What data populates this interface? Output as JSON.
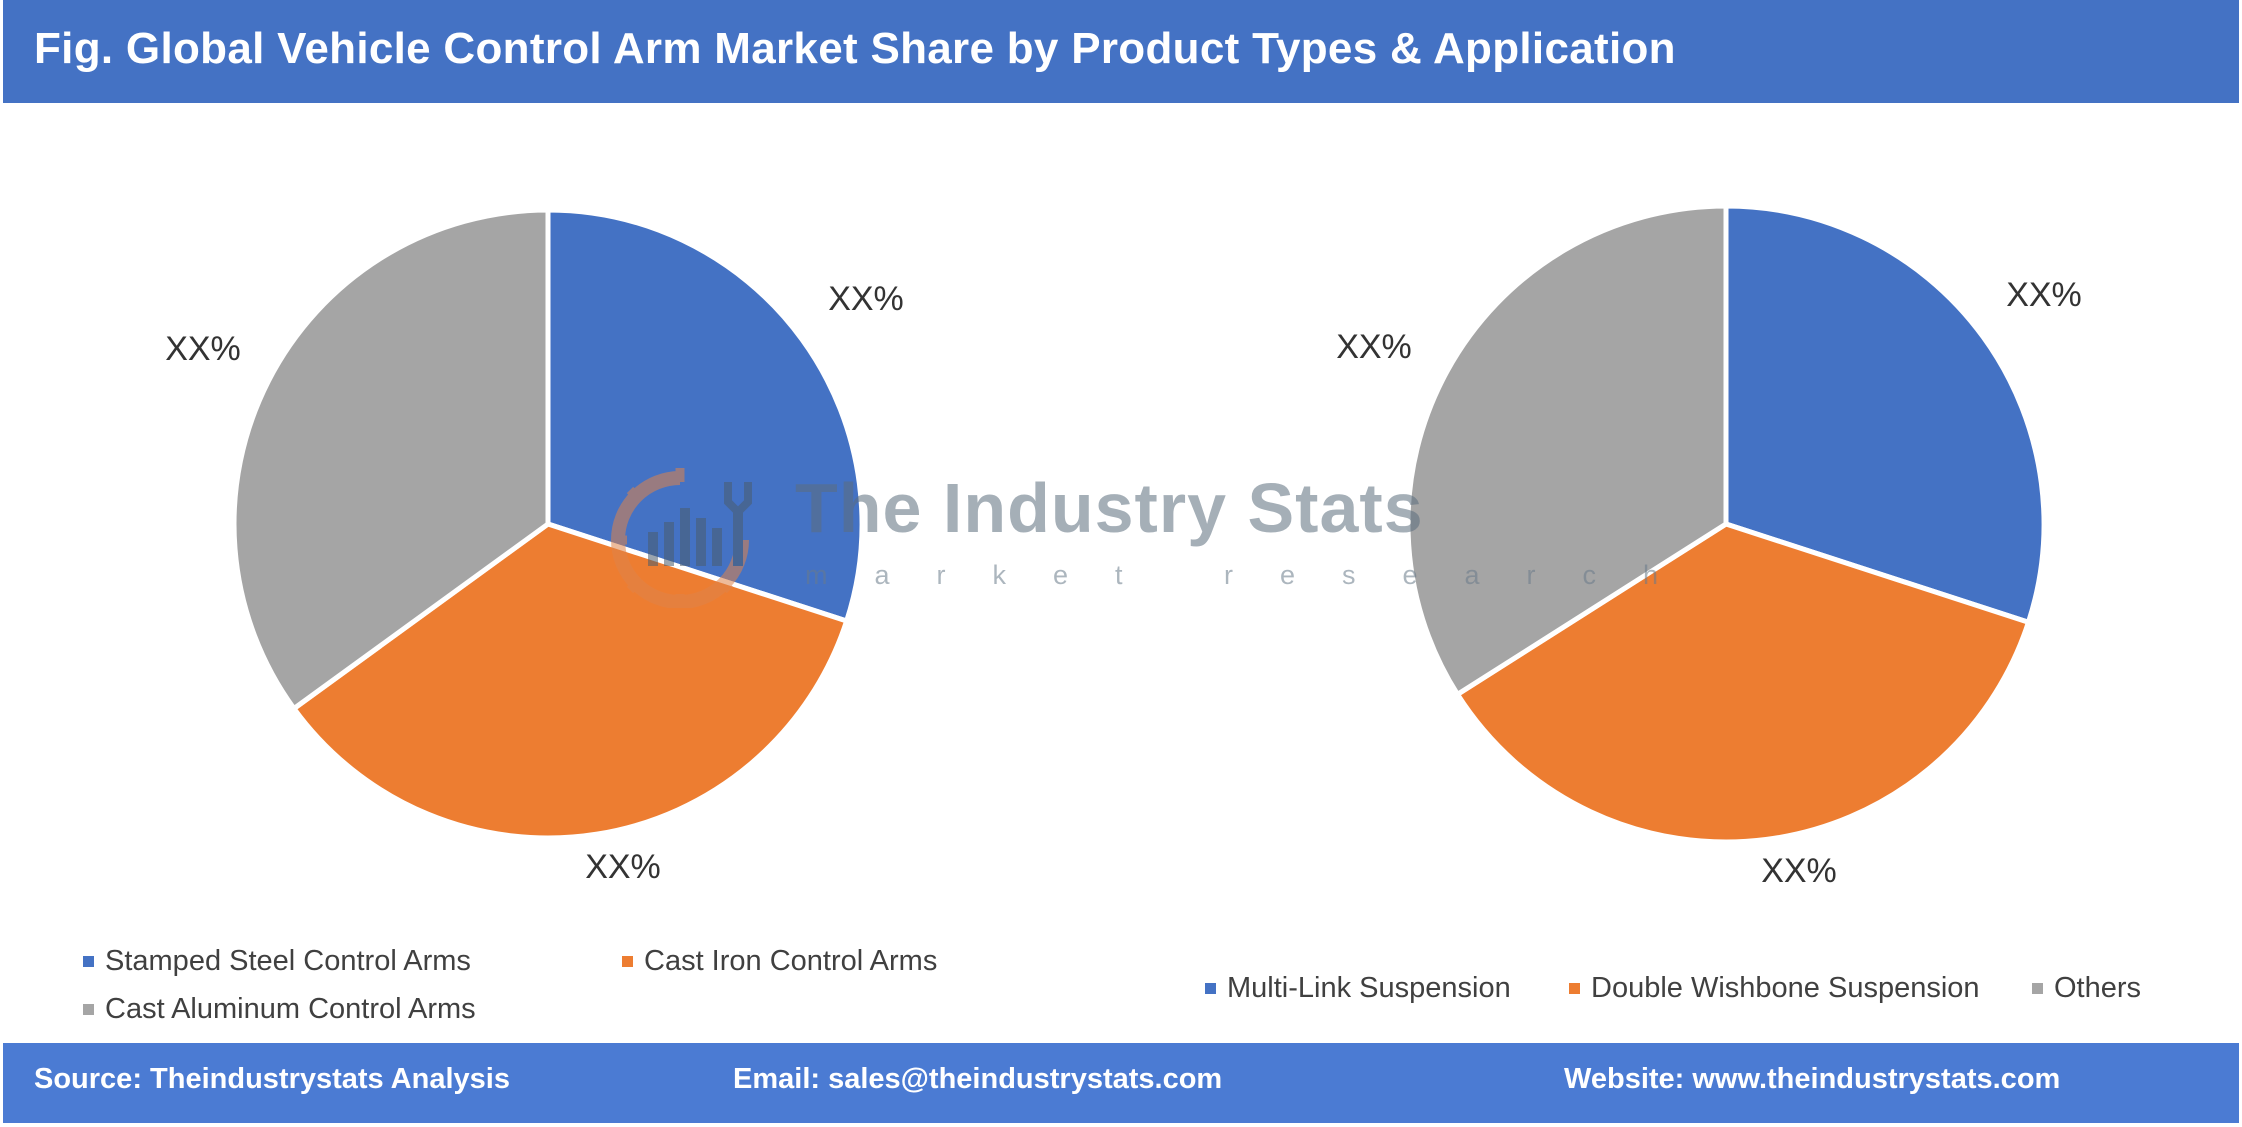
{
  "header": {
    "title": "Fig. Global Vehicle Control Arm Market Share by Product Types & Application"
  },
  "watermark": {
    "title": "The Industry Stats",
    "subtitle": "market research"
  },
  "footer": {
    "source": "Source: Theindustrystats Analysis",
    "email": "Email: sales@theindustrystats.com",
    "website": "Website: www.theindustrystats.com"
  },
  "chart_data": [
    {
      "type": "pie",
      "title": "",
      "categories": [
        "Stamped Steel Control Arms",
        "Cast Iron Control Arms",
        "Cast Aluminum Control Arms"
      ],
      "values": [
        30,
        35,
        35
      ],
      "data_labels": [
        "XX%",
        "XX%",
        "XX%"
      ],
      "colors": [
        "#4472c4",
        "#ed7d31",
        "#a5a5a5"
      ],
      "legend": {
        "position": "bottom",
        "entries": [
          "Stamped Steel Control Arms",
          "Cast Iron Control Arms",
          "Cast Aluminum Control Arms"
        ]
      }
    },
    {
      "type": "pie",
      "title": "",
      "categories": [
        "Multi-Link Suspension",
        "Double Wishbone Suspension",
        "Others"
      ],
      "values": [
        30,
        36,
        34
      ],
      "data_labels": [
        "XX%",
        "XX%",
        "XX%"
      ],
      "colors": [
        "#4472c4",
        "#ed7d31",
        "#a5a5a5"
      ],
      "legend": {
        "position": "bottom",
        "entries": [
          "Multi-Link Suspension",
          "Double Wishbone Suspension",
          "Others"
        ]
      }
    }
  ]
}
